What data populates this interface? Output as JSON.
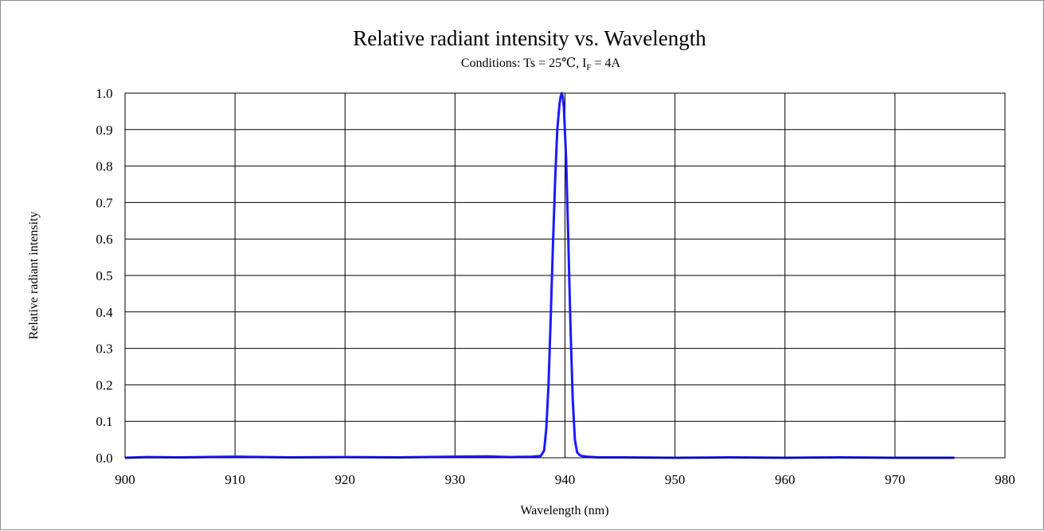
{
  "chart_data": {
    "type": "line",
    "title": "Relative radiant intensity vs. Wavelength",
    "subtitle_prefix": "Conditions: Ts = 25℃, I",
    "subtitle_subscript": "F",
    "subtitle_suffix": " = 4A",
    "xlabel": "Wavelength (nm)",
    "ylabel": "Relative radiant intensity",
    "xlim": [
      900,
      980
    ],
    "ylim": [
      0.0,
      1.0
    ],
    "x_ticks": [
      "900",
      "910",
      "920",
      "930",
      "940",
      "950",
      "960",
      "970",
      "980"
    ],
    "y_ticks": [
      "0.0",
      "0.1",
      "0.2",
      "0.3",
      "0.4",
      "0.5",
      "0.6",
      "0.7",
      "0.8",
      "0.9",
      "1.0"
    ],
    "grid": true,
    "line_color": "#1a1aff",
    "series": [
      {
        "x": [
          900.0,
          902.0,
          905.0,
          910.0,
          915.0,
          920.0,
          925.0,
          930.0,
          933.0,
          935.0,
          937.0,
          937.8,
          938.1,
          938.3,
          938.5,
          938.7,
          938.9,
          939.1,
          939.3,
          939.5,
          939.6,
          939.7,
          939.8,
          939.9,
          940.1,
          940.3,
          940.5,
          940.7,
          940.9,
          941.1,
          941.3,
          941.5,
          942.0,
          943.0,
          945.0,
          950.0,
          955.0,
          960.0,
          965.0,
          970.0,
          975.4
        ],
        "y": [
          0.0,
          0.002,
          0.001,
          0.003,
          0.001,
          0.002,
          0.001,
          0.003,
          0.004,
          0.002,
          0.003,
          0.005,
          0.02,
          0.08,
          0.2,
          0.38,
          0.58,
          0.76,
          0.9,
          0.97,
          0.99,
          1.0,
          0.99,
          0.96,
          0.82,
          0.6,
          0.36,
          0.16,
          0.05,
          0.015,
          0.008,
          0.005,
          0.003,
          0.001,
          0.001,
          0.0,
          0.001,
          0.0,
          0.001,
          0.0,
          0.0
        ]
      }
    ]
  }
}
